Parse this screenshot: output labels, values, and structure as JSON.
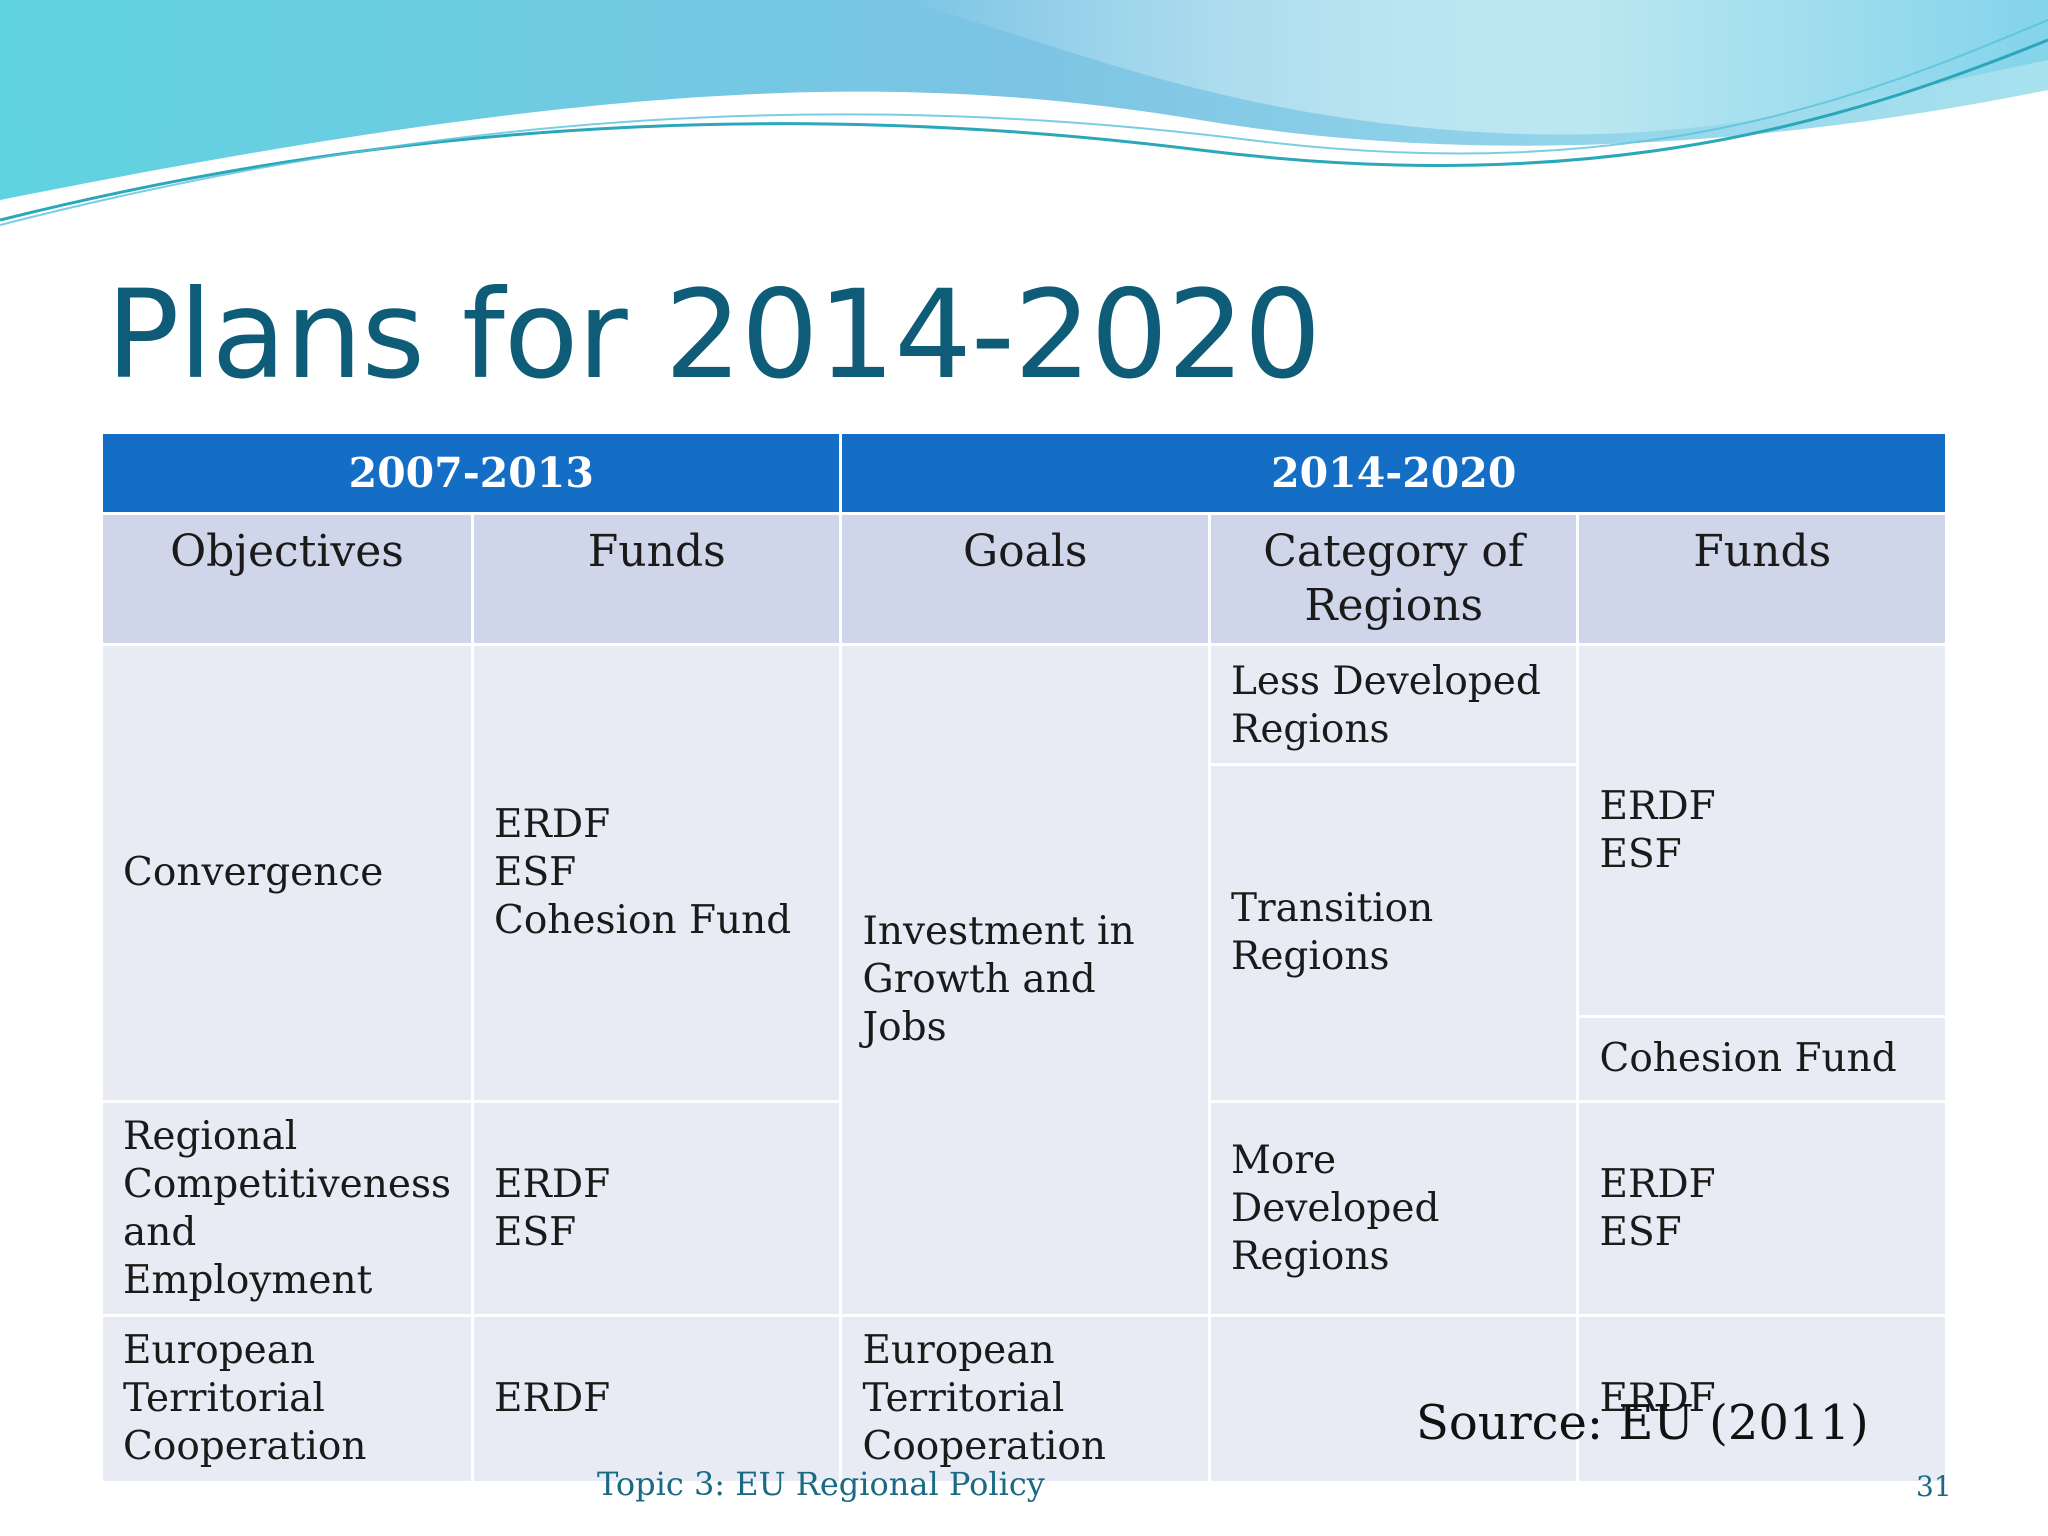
{
  "slide": {
    "title": "Plans for 2014-2020",
    "source": "Source: EU (2011)",
    "footer": "Topic 3: EU Regional Policy",
    "page_number": "31"
  },
  "table": {
    "periods": {
      "p1": "2007-2013",
      "p2": "2014-2020"
    },
    "columns": {
      "objectives": "Objectives",
      "funds_old": "Funds",
      "goals": "Goals",
      "category": "Category of Regions",
      "funds_new": "Funds"
    },
    "rows": {
      "convergence": "Convergence",
      "convergence_funds": [
        "ERDF",
        "ESF",
        "Cohesion Fund"
      ],
      "investment_goal": [
        "Investment in",
        "Growth and Jobs"
      ],
      "less_developed": [
        "Less Developed",
        "Regions"
      ],
      "less_dev_funds": [
        "ERDF",
        "ESF"
      ],
      "transition": "Transition Regions",
      "cohesion_fund": "Cohesion Fund",
      "rce": [
        "Regional",
        "Competitiveness",
        "and",
        "Employment"
      ],
      "rce_funds": [
        "ERDF",
        "ESF"
      ],
      "more_developed": [
        "More Developed",
        "Regions"
      ],
      "more_dev_funds": [
        "ERDF",
        "ESF"
      ],
      "etc_objective": [
        "European",
        "Territorial",
        "Cooperation"
      ],
      "etc_funds_old": "ERDF",
      "etc_goal": [
        "European",
        "Territorial",
        "Cooperation"
      ],
      "etc_category": "",
      "etc_funds_new": "ERDF"
    }
  },
  "colors": {
    "title": "#0e5c78",
    "header_band": "#156ec6",
    "subheader": "#cfd6ea",
    "cell": "#e9ebf4"
  }
}
